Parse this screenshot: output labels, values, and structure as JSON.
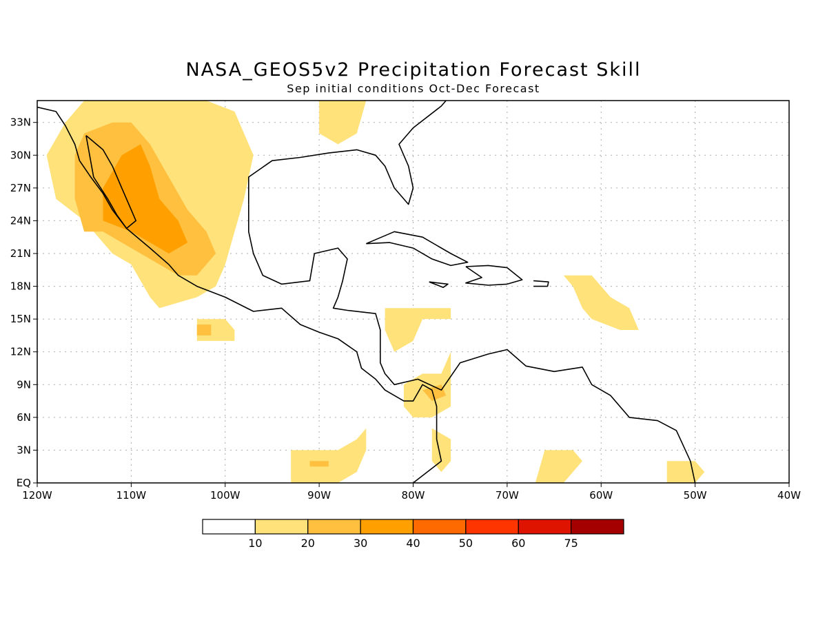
{
  "title": "NASA_GEOS5v2 Precipitation Forecast Skill",
  "subtitle": "Sep initial conditions  Oct-Dec Forecast",
  "map": {
    "lon_range": [
      -120,
      -40
    ],
    "lat_range": [
      0,
      35
    ],
    "lon_ticks": [
      {
        "value": -120,
        "label": "120W"
      },
      {
        "value": -110,
        "label": "110W"
      },
      {
        "value": -100,
        "label": "100W"
      },
      {
        "value": -90,
        "label": "90W"
      },
      {
        "value": -80,
        "label": "80W"
      },
      {
        "value": -70,
        "label": "70W"
      },
      {
        "value": -60,
        "label": "60W"
      },
      {
        "value": -50,
        "label": "50W"
      },
      {
        "value": -40,
        "label": "40W"
      }
    ],
    "lat_ticks": [
      {
        "value": 0,
        "label": "EQ"
      },
      {
        "value": 3,
        "label": "3N"
      },
      {
        "value": 6,
        "label": "6N"
      },
      {
        "value": 9,
        "label": "9N"
      },
      {
        "value": 12,
        "label": "12N"
      },
      {
        "value": 15,
        "label": "15N"
      },
      {
        "value": 18,
        "label": "18N"
      },
      {
        "value": 21,
        "label": "21N"
      },
      {
        "value": 24,
        "label": "24N"
      },
      {
        "value": 27,
        "label": "27N"
      },
      {
        "value": 30,
        "label": "30N"
      },
      {
        "value": 33,
        "label": "33N"
      }
    ],
    "gridlines": true,
    "skill_regions": [
      {
        "name": "mexico-nw",
        "level": 10,
        "points": [
          [
            -115,
            24
          ],
          [
            -118,
            26
          ],
          [
            -119,
            30
          ],
          [
            -117,
            33
          ],
          [
            -115,
            35
          ],
          [
            -108,
            35
          ],
          [
            -102,
            35
          ],
          [
            -99,
            34
          ],
          [
            -97,
            30
          ],
          [
            -98,
            26
          ],
          [
            -99,
            23
          ],
          [
            -100,
            20
          ],
          [
            -101,
            18
          ],
          [
            -103,
            17
          ],
          [
            -107,
            16
          ],
          [
            -108,
            17
          ],
          [
            -110,
            20
          ],
          [
            -112,
            21
          ],
          [
            -113,
            22
          ]
        ]
      },
      {
        "name": "mexico-nw",
        "level": 20,
        "points": [
          [
            -115,
            23
          ],
          [
            -116,
            26
          ],
          [
            -116,
            30
          ],
          [
            -115,
            32
          ],
          [
            -112,
            33
          ],
          [
            -110,
            33
          ],
          [
            -108,
            31
          ],
          [
            -106,
            28
          ],
          [
            -104,
            25
          ],
          [
            -102,
            23
          ],
          [
            -101,
            21
          ],
          [
            -103,
            19
          ],
          [
            -105,
            19
          ],
          [
            -107,
            20
          ],
          [
            -109,
            21
          ],
          [
            -111,
            22
          ],
          [
            -113,
            23
          ]
        ]
      },
      {
        "name": "mexico-nw",
        "level": 30,
        "points": [
          [
            -113,
            24
          ],
          [
            -113,
            27
          ],
          [
            -111,
            30
          ],
          [
            -109,
            31
          ],
          [
            -108,
            29
          ],
          [
            -107,
            26
          ],
          [
            -105,
            24
          ],
          [
            -104,
            22
          ],
          [
            -106,
            21
          ],
          [
            -108,
            22
          ],
          [
            -110,
            23
          ]
        ]
      },
      {
        "name": "pacific-offshore",
        "level": 10,
        "points": [
          [
            -103,
            15
          ],
          [
            -100,
            15
          ],
          [
            -99,
            14
          ],
          [
            -99,
            13
          ],
          [
            -103,
            13
          ]
        ]
      },
      {
        "name": "pacific-offshore",
        "level": 20,
        "points": [
          [
            -103,
            14.5
          ],
          [
            -101.5,
            14.5
          ],
          [
            -101.5,
            13.5
          ],
          [
            -103,
            13.5
          ]
        ]
      },
      {
        "name": "us-southeast",
        "level": 10,
        "points": [
          [
            -90,
            35
          ],
          [
            -85,
            35
          ],
          [
            -86,
            32
          ],
          [
            -88,
            31
          ],
          [
            -90,
            32
          ]
        ]
      },
      {
        "name": "caribbean-central",
        "level": 10,
        "points": [
          [
            -83,
            16
          ],
          [
            -79,
            16
          ],
          [
            -76,
            16
          ],
          [
            -76,
            15
          ],
          [
            -79,
            15
          ],
          [
            -80,
            13
          ],
          [
            -82,
            12
          ],
          [
            -83,
            14
          ]
        ]
      },
      {
        "name": "colombia-panama",
        "level": 10,
        "points": [
          [
            -81,
            9
          ],
          [
            -79,
            10
          ],
          [
            -77,
            10
          ],
          [
            -76,
            12
          ],
          [
            -76,
            9
          ],
          [
            -76,
            7
          ],
          [
            -78,
            6
          ],
          [
            -80,
            6
          ],
          [
            -81,
            7
          ]
        ]
      },
      {
        "name": "colombia-panama",
        "level": 20,
        "points": [
          [
            -79,
            8.5
          ],
          [
            -77,
            9
          ],
          [
            -76.5,
            8
          ],
          [
            -78,
            7.5
          ]
        ]
      },
      {
        "name": "colombia-west",
        "level": 10,
        "points": [
          [
            -78,
            5
          ],
          [
            -76,
            4
          ],
          [
            -76,
            2
          ],
          [
            -77,
            1
          ],
          [
            -78,
            2
          ]
        ]
      },
      {
        "name": "pacific-galapagos",
        "level": 10,
        "points": [
          [
            -93,
            3
          ],
          [
            -88,
            3
          ],
          [
            -86,
            4
          ],
          [
            -85,
            5
          ],
          [
            -85,
            3
          ],
          [
            -86,
            1
          ],
          [
            -88,
            0
          ],
          [
            -93,
            0
          ]
        ]
      },
      {
        "name": "pacific-galapagos",
        "level": 20,
        "points": [
          [
            -91,
            2
          ],
          [
            -89,
            2
          ],
          [
            -89,
            1.5
          ],
          [
            -91,
            1.5
          ]
        ]
      },
      {
        "name": "lesser-antilles",
        "level": 10,
        "points": [
          [
            -64,
            19
          ],
          [
            -61,
            19
          ],
          [
            -59,
            17
          ],
          [
            -57,
            16
          ],
          [
            -56,
            14
          ],
          [
            -58,
            14
          ],
          [
            -61,
            15
          ],
          [
            -62,
            16
          ],
          [
            -63,
            18
          ]
        ]
      },
      {
        "name": "guianas-south",
        "level": 10,
        "points": [
          [
            -66,
            3
          ],
          [
            -63,
            3
          ],
          [
            -62,
            2
          ],
          [
            -64,
            0
          ],
          [
            -67,
            0
          ]
        ]
      },
      {
        "name": "brazil-amapa",
        "level": 10,
        "points": [
          [
            -53,
            2
          ],
          [
            -50,
            2
          ],
          [
            -49,
            1
          ],
          [
            -50,
            0
          ],
          [
            -53,
            0
          ]
        ]
      }
    ],
    "land_outlines": [
      {
        "name": "north-america",
        "points": [
          [
            -120,
            34.4
          ],
          [
            -118,
            34
          ],
          [
            -117,
            32.7
          ],
          [
            -116,
            31
          ],
          [
            -115.5,
            29.5
          ],
          [
            -114.3,
            28
          ],
          [
            -113,
            26.5
          ],
          [
            -112,
            25
          ],
          [
            -110.5,
            23.3
          ],
          [
            -108,
            21.5
          ],
          [
            -106,
            20
          ],
          [
            -105,
            19
          ],
          [
            -103,
            18
          ],
          [
            -100,
            17
          ],
          [
            -97,
            15.7
          ],
          [
            -94,
            16
          ],
          [
            -92,
            14.5
          ],
          [
            -90,
            13.8
          ],
          [
            -88,
            13.2
          ],
          [
            -86,
            12
          ],
          [
            -85.5,
            10.5
          ],
          [
            -84,
            9.5
          ],
          [
            -83,
            8.5
          ],
          [
            -81,
            7.5
          ],
          [
            -80,
            7.5
          ],
          [
            -79,
            9
          ],
          [
            -78,
            8.5
          ],
          [
            -77.5,
            7
          ],
          [
            -77.5,
            4
          ],
          [
            -77,
            2
          ],
          [
            -78.5,
            1
          ],
          [
            -80,
            0
          ]
        ]
      },
      {
        "name": "baja-and-gulf",
        "points": [
          [
            -114.8,
            31.8
          ],
          [
            -113,
            30.5
          ],
          [
            -112,
            29
          ],
          [
            -111,
            27
          ],
          [
            -110,
            25
          ],
          [
            -109.5,
            24
          ],
          [
            -110.5,
            23.3
          ],
          [
            -111.5,
            24.5
          ],
          [
            -112.5,
            26
          ],
          [
            -114,
            28
          ],
          [
            -114.8,
            31.8
          ]
        ]
      },
      {
        "name": "gulf-coast",
        "points": [
          [
            -97.5,
            25.5
          ],
          [
            -97.5,
            28
          ],
          [
            -95,
            29.5
          ],
          [
            -92,
            29.8
          ],
          [
            -89,
            30.2
          ],
          [
            -86,
            30.5
          ],
          [
            -84,
            30
          ],
          [
            -83,
            29
          ],
          [
            -82,
            27
          ],
          [
            -80.5,
            25.5
          ],
          [
            -80,
            27
          ],
          [
            -80.5,
            29
          ],
          [
            -81.5,
            31
          ],
          [
            -80,
            32.5
          ],
          [
            -77,
            34.5
          ],
          [
            -76.5,
            35
          ]
        ]
      },
      {
        "name": "mexico-east",
        "points": [
          [
            -97.5,
            25.5
          ],
          [
            -97.5,
            23
          ],
          [
            -97,
            21
          ],
          [
            -96,
            19
          ],
          [
            -94,
            18.2
          ],
          [
            -91,
            18.5
          ],
          [
            -90.5,
            21
          ],
          [
            -88,
            21.5
          ],
          [
            -87,
            20.5
          ],
          [
            -87.5,
            18.5
          ],
          [
            -88,
            17
          ],
          [
            -88.5,
            16
          ],
          [
            -87,
            15.8
          ],
          [
            -84,
            15.5
          ],
          [
            -83.5,
            14
          ],
          [
            -83.5,
            11
          ],
          [
            -83,
            10
          ],
          [
            -82,
            9
          ],
          [
            -79.5,
            9.5
          ],
          [
            -77,
            8.5
          ],
          [
            -75,
            11
          ],
          [
            -72,
            11.8
          ],
          [
            -70,
            12.2
          ],
          [
            -68,
            10.7
          ],
          [
            -65,
            10.2
          ],
          [
            -62,
            10.6
          ],
          [
            -61,
            9
          ],
          [
            -59,
            8
          ],
          [
            -57,
            6
          ],
          [
            -54,
            5.7
          ],
          [
            -52,
            4.8
          ],
          [
            -50.5,
            2
          ],
          [
            -50,
            0
          ]
        ]
      },
      {
        "name": "cuba",
        "points": [
          [
            -85,
            21.9
          ],
          [
            -82,
            23
          ],
          [
            -79,
            22.5
          ],
          [
            -76,
            21
          ],
          [
            -74.2,
            20.2
          ],
          [
            -76,
            19.9
          ],
          [
            -78,
            20.5
          ],
          [
            -80,
            21.5
          ],
          [
            -82.5,
            22
          ],
          [
            -85,
            21.9
          ]
        ]
      },
      {
        "name": "hispaniola",
        "points": [
          [
            -74.4,
            19.8
          ],
          [
            -72,
            19.9
          ],
          [
            -70,
            19.7
          ],
          [
            -68.4,
            18.6
          ],
          [
            -70,
            18.2
          ],
          [
            -72,
            18.1
          ],
          [
            -74.4,
            18.3
          ],
          [
            -72.7,
            18.8
          ],
          [
            -74.4,
            19.8
          ]
        ]
      },
      {
        "name": "jamaica",
        "points": [
          [
            -78.3,
            18.4
          ],
          [
            -76.3,
            18.2
          ],
          [
            -76.8,
            17.9
          ],
          [
            -78.3,
            18.4
          ]
        ]
      },
      {
        "name": "puerto-rico",
        "points": [
          [
            -67.2,
            18.5
          ],
          [
            -65.6,
            18.4
          ],
          [
            -65.7,
            18
          ],
          [
            -67.2,
            18
          ]
        ]
      }
    ]
  },
  "colorbar": {
    "levels": [
      {
        "color": "#ffffff",
        "label": "10"
      },
      {
        "color": "#ffe27a",
        "label": "20"
      },
      {
        "color": "#ffc040",
        "label": "30"
      },
      {
        "color": "#ffa000",
        "label": "40"
      },
      {
        "color": "#ff6a00",
        "label": "50"
      },
      {
        "color": "#ff3500",
        "label": "60"
      },
      {
        "color": "#de1300",
        "label": "75"
      },
      {
        "color": "#a50000",
        "label": ""
      }
    ]
  }
}
